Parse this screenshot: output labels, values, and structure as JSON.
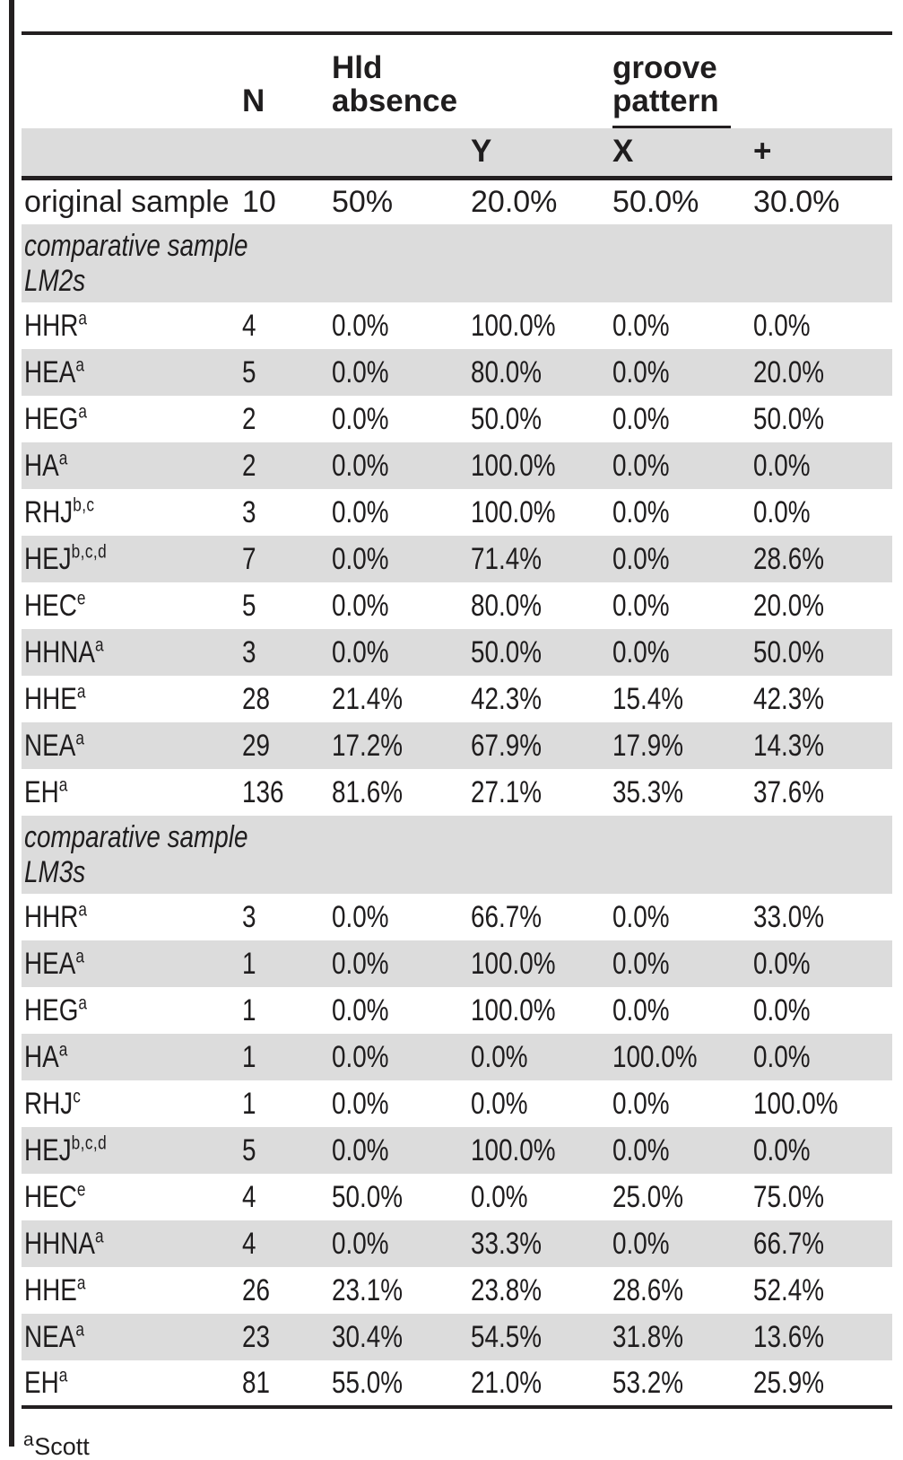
{
  "page": {
    "background_color": "#ffffff",
    "text_color": "#231f20",
    "stripe_color": "#dcdcdc",
    "rule_color": "#231f20"
  },
  "table": {
    "header": {
      "n": "N",
      "hld": "Hld absence",
      "groove_group": "groove pattern",
      "sub_y": "Y",
      "sub_x": "X",
      "sub_plus": "+"
    },
    "rows": [
      {
        "type": "data",
        "plain": true,
        "label": "original sample",
        "sup": "",
        "values": [
          "10",
          "50%",
          "20.0%",
          "50.0%",
          "30.0%"
        ]
      },
      {
        "type": "section",
        "label": "comparative sample",
        "label2": "LM2s"
      },
      {
        "type": "data",
        "label": "HHR",
        "sup": "a",
        "values": [
          "4",
          "0.0%",
          "100.0%",
          "0.0%",
          "0.0%"
        ]
      },
      {
        "type": "data",
        "label": "HEA",
        "sup": "a",
        "values": [
          "5",
          "0.0%",
          "80.0%",
          "0.0%",
          "20.0%"
        ]
      },
      {
        "type": "data",
        "label": "HEG",
        "sup": "a",
        "values": [
          "2",
          "0.0%",
          "50.0%",
          "0.0%",
          "50.0%"
        ]
      },
      {
        "type": "data",
        "label": "HA",
        "sup": "a",
        "values": [
          "2",
          "0.0%",
          "100.0%",
          "0.0%",
          "0.0%"
        ]
      },
      {
        "type": "data",
        "label": "RHJ",
        "sup": "b,c",
        "values": [
          "3",
          "0.0%",
          "100.0%",
          "0.0%",
          "0.0%"
        ]
      },
      {
        "type": "data",
        "label": "HEJ",
        "sup": "b,c,d",
        "values": [
          "7",
          "0.0%",
          "71.4%",
          "0.0%",
          "28.6%"
        ]
      },
      {
        "type": "data",
        "label": "HEC",
        "sup": "e",
        "values": [
          "5",
          "0.0%",
          "80.0%",
          "0.0%",
          "20.0%"
        ]
      },
      {
        "type": "data",
        "label": "HHNA",
        "sup": "a",
        "values": [
          "3",
          "0.0%",
          "50.0%",
          "0.0%",
          "50.0%"
        ]
      },
      {
        "type": "data",
        "label": "HHE",
        "sup": "a",
        "values": [
          "28",
          "21.4%",
          "42.3%",
          "15.4%",
          "42.3%"
        ]
      },
      {
        "type": "data",
        "label": "NEA",
        "sup": "a",
        "values": [
          "29",
          "17.2%",
          "67.9%",
          "17.9%",
          "14.3%"
        ]
      },
      {
        "type": "data",
        "label": "EH",
        "sup": "a",
        "values": [
          "136",
          "81.6%",
          "27.1%",
          "35.3%",
          "37.6%"
        ]
      },
      {
        "type": "section",
        "label": "comparative sample",
        "label2": "LM3s"
      },
      {
        "type": "data",
        "label": "HHR",
        "sup": "a",
        "values": [
          "3",
          "0.0%",
          "66.7%",
          "0.0%",
          "33.0%"
        ]
      },
      {
        "type": "data",
        "label": "HEA",
        "sup": "a",
        "values": [
          "1",
          "0.0%",
          "100.0%",
          "0.0%",
          "0.0%"
        ]
      },
      {
        "type": "data",
        "label": "HEG",
        "sup": "a",
        "values": [
          "1",
          "0.0%",
          "100.0%",
          "0.0%",
          "0.0%"
        ]
      },
      {
        "type": "data",
        "label": "HA",
        "sup": "a",
        "values": [
          "1",
          "0.0%",
          "0.0%",
          "100.0%",
          "0.0%"
        ]
      },
      {
        "type": "data",
        "label": "RHJ",
        "sup": "c",
        "values": [
          "1",
          "0.0%",
          "0.0%",
          "0.0%",
          "100.0%"
        ]
      },
      {
        "type": "data",
        "label": "HEJ",
        "sup": "b,c,d",
        "values": [
          "5",
          "0.0%",
          "100.0%",
          "0.0%",
          "0.0%"
        ]
      },
      {
        "type": "data",
        "label": "HEC",
        "sup": "e",
        "values": [
          "4",
          "50.0%",
          "0.0%",
          "25.0%",
          "75.0%"
        ]
      },
      {
        "type": "data",
        "label": "HHNA",
        "sup": "a",
        "values": [
          "4",
          "0.0%",
          "33.3%",
          "0.0%",
          "66.7%"
        ]
      },
      {
        "type": "data",
        "label": "HHE",
        "sup": "a",
        "values": [
          "26",
          "23.1%",
          "23.8%",
          "28.6%",
          "52.4%"
        ]
      },
      {
        "type": "data",
        "label": "NEA",
        "sup": "a",
        "values": [
          "23",
          "30.4%",
          "54.5%",
          "31.8%",
          "13.6%"
        ]
      },
      {
        "type": "data",
        "label": "EH",
        "sup": "a",
        "values": [
          "81",
          "55.0%",
          "21.0%",
          "53.2%",
          "25.9%"
        ]
      }
    ],
    "footnote": {
      "sup": "a",
      "text": "Scott"
    }
  }
}
